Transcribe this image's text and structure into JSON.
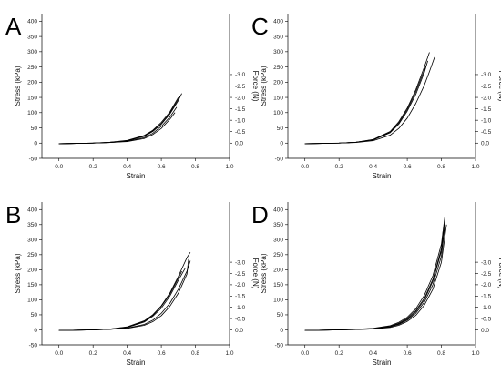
{
  "chart_data": [
    {
      "type": "line",
      "panel_label": "A",
      "xlabel": "Strain",
      "ylabel": "Stress (kPa)",
      "y2label": "Force (N)",
      "xlim": [
        -0.1,
        1.0
      ],
      "ylim": [
        -50,
        425
      ],
      "xticks": [
        "0.0",
        "0.2",
        "0.4",
        "0.6",
        "0.8",
        "1.0"
      ],
      "yticks": [
        "-50",
        "0",
        "50",
        "100",
        "150",
        "200",
        "250",
        "300",
        "350",
        "400"
      ],
      "y2ticks": [
        "0.0",
        "-0.5",
        "-1.0",
        "-1.5",
        "-2.0",
        "-2.5",
        "-3.0"
      ],
      "series": [
        {
          "x": [
            0.0,
            0.2,
            0.3,
            0.4,
            0.5,
            0.55,
            0.6,
            0.65,
            0.7,
            0.72
          ],
          "y": [
            -2,
            0,
            2,
            7,
            22,
            38,
            62,
            95,
            140,
            163
          ]
        },
        {
          "x": [
            0.0,
            0.2,
            0.3,
            0.4,
            0.5,
            0.55,
            0.6,
            0.65,
            0.7
          ],
          "y": [
            -2,
            0,
            3,
            9,
            25,
            42,
            68,
            102,
            150
          ]
        },
        {
          "x": [
            0.0,
            0.2,
            0.3,
            0.4,
            0.5,
            0.55,
            0.6,
            0.65,
            0.69
          ],
          "y": [
            -2,
            0,
            2,
            6,
            18,
            32,
            55,
            85,
            118
          ]
        },
        {
          "x": [
            0.0,
            0.2,
            0.3,
            0.4,
            0.5,
            0.55,
            0.6,
            0.65,
            0.68
          ],
          "y": [
            -2,
            0,
            2,
            5,
            15,
            28,
            48,
            78,
            100
          ]
        },
        {
          "x": [
            0.0,
            0.2,
            0.3,
            0.4,
            0.5,
            0.55,
            0.6,
            0.65,
            0.7,
            0.71
          ],
          "y": [
            -2,
            0,
            3,
            8,
            24,
            40,
            64,
            98,
            145,
            155
          ]
        }
      ]
    },
    {
      "type": "line",
      "panel_label": "C",
      "xlabel": "Strain",
      "ylabel": "Stress (kPa)",
      "y2label": "Force (N)",
      "xlim": [
        -0.1,
        1.0
      ],
      "ylim": [
        -50,
        425
      ],
      "xticks": [
        "0.0",
        "0.2",
        "0.4",
        "0.6",
        "0.8",
        "1.0"
      ],
      "yticks": [
        "-50",
        "0",
        "50",
        "100",
        "150",
        "200",
        "250",
        "300",
        "350",
        "400"
      ],
      "y2ticks": [
        "0.0",
        "-0.5",
        "-1.0",
        "-1.5",
        "-2.0",
        "-2.5",
        "-3.0"
      ],
      "series": [
        {
          "x": [
            0.0,
            0.2,
            0.3,
            0.4,
            0.5,
            0.55,
            0.6,
            0.65,
            0.7,
            0.73
          ],
          "y": [
            -2,
            0,
            3,
            12,
            38,
            70,
            115,
            175,
            250,
            298
          ]
        },
        {
          "x": [
            0.0,
            0.2,
            0.3,
            0.4,
            0.5,
            0.55,
            0.6,
            0.65,
            0.7,
            0.72
          ],
          "y": [
            -2,
            0,
            3,
            10,
            34,
            62,
            105,
            160,
            232,
            270
          ]
        },
        {
          "x": [
            0.0,
            0.2,
            0.3,
            0.4,
            0.5,
            0.55,
            0.6,
            0.65,
            0.7,
            0.73,
            0.76
          ],
          "y": [
            -2,
            0,
            2,
            8,
            26,
            48,
            82,
            130,
            190,
            235,
            282
          ]
        },
        {
          "x": [
            0.0,
            0.2,
            0.3,
            0.4,
            0.5,
            0.55,
            0.6,
            0.65,
            0.7,
            0.71
          ],
          "y": [
            -2,
            0,
            3,
            11,
            36,
            66,
            110,
            168,
            240,
            255
          ]
        }
      ]
    },
    {
      "type": "line",
      "panel_label": "B",
      "xlabel": "Strain",
      "ylabel": "Stress (kPa)",
      "y2label": "Force (N)",
      "xlim": [
        -0.1,
        1.0
      ],
      "ylim": [
        -50,
        425
      ],
      "xticks": [
        "0.0",
        "0.2",
        "0.4",
        "0.6",
        "0.8",
        "1.0"
      ],
      "yticks": [
        "-50",
        "0",
        "50",
        "100",
        "150",
        "200",
        "250",
        "300",
        "350",
        "400"
      ],
      "y2ticks": [
        "0.0",
        "-0.5",
        "-1.0",
        "-1.5",
        "-2.0",
        "-2.5",
        "-3.0"
      ],
      "series": [
        {
          "x": [
            0.0,
            0.2,
            0.3,
            0.4,
            0.5,
            0.55,
            0.6,
            0.65,
            0.7,
            0.75,
            0.77
          ],
          "y": [
            -2,
            0,
            3,
            10,
            30,
            50,
            80,
            122,
            178,
            240,
            258
          ]
        },
        {
          "x": [
            0.0,
            0.2,
            0.3,
            0.4,
            0.5,
            0.55,
            0.6,
            0.65,
            0.7,
            0.74
          ],
          "y": [
            -2,
            0,
            2,
            8,
            26,
            45,
            72,
            112,
            165,
            205
          ]
        },
        {
          "x": [
            0.0,
            0.2,
            0.3,
            0.4,
            0.5,
            0.55,
            0.6,
            0.65,
            0.7,
            0.75,
            0.77
          ],
          "y": [
            -2,
            0,
            2,
            6,
            18,
            32,
            55,
            88,
            135,
            195,
            230
          ]
        },
        {
          "x": [
            0.0,
            0.2,
            0.3,
            0.4,
            0.5,
            0.55,
            0.6,
            0.65,
            0.7,
            0.75,
            0.76
          ],
          "y": [
            -2,
            0,
            2,
            5,
            15,
            27,
            47,
            78,
            122,
            185,
            235
          ]
        },
        {
          "x": [
            0.0,
            0.2,
            0.3,
            0.4,
            0.5,
            0.55,
            0.6,
            0.65,
            0.7,
            0.72
          ],
          "y": [
            -2,
            0,
            3,
            9,
            28,
            48,
            78,
            118,
            172,
            195
          ]
        }
      ]
    },
    {
      "type": "line",
      "panel_label": "D",
      "xlabel": "Strain",
      "ylabel": "Stress (kPa)",
      "y2label": "Force (N)",
      "xlim": [
        -0.1,
        1.0
      ],
      "ylim": [
        -50,
        425
      ],
      "xticks": [
        "0.0",
        "0.2",
        "0.4",
        "0.6",
        "0.8",
        "1.0"
      ],
      "yticks": [
        "-50",
        "0",
        "50",
        "100",
        "150",
        "200",
        "250",
        "300",
        "350",
        "400"
      ],
      "y2ticks": [
        "0.0",
        "-0.5",
        "-1.0",
        "-1.5",
        "-2.0",
        "-2.5",
        "-3.0"
      ],
      "series": [
        {
          "x": [
            0.0,
            0.2,
            0.3,
            0.4,
            0.5,
            0.55,
            0.6,
            0.65,
            0.7,
            0.75,
            0.8,
            0.82
          ],
          "y": [
            -2,
            0,
            2,
            5,
            14,
            25,
            42,
            70,
            115,
            180,
            285,
            375
          ]
        },
        {
          "x": [
            0.0,
            0.2,
            0.3,
            0.4,
            0.5,
            0.55,
            0.6,
            0.65,
            0.7,
            0.75,
            0.8,
            0.81
          ],
          "y": [
            -2,
            0,
            2,
            4,
            12,
            22,
            38,
            64,
            105,
            168,
            270,
            330
          ]
        },
        {
          "x": [
            0.0,
            0.2,
            0.3,
            0.4,
            0.5,
            0.55,
            0.6,
            0.65,
            0.7,
            0.75,
            0.8,
            0.82
          ],
          "y": [
            -2,
            0,
            1,
            3,
            10,
            18,
            32,
            55,
            92,
            150,
            245,
            340
          ]
        },
        {
          "x": [
            0.0,
            0.2,
            0.3,
            0.4,
            0.5,
            0.55,
            0.6,
            0.65,
            0.7,
            0.75,
            0.8,
            0.83
          ],
          "y": [
            -2,
            0,
            1,
            3,
            8,
            15,
            28,
            48,
            82,
            135,
            225,
            350
          ]
        },
        {
          "x": [
            0.0,
            0.2,
            0.3,
            0.4,
            0.5,
            0.55,
            0.6,
            0.65,
            0.7,
            0.75,
            0.8,
            0.82
          ],
          "y": [
            -2,
            0,
            2,
            4,
            11,
            20,
            35,
            60,
            100,
            162,
            262,
            360
          ]
        }
      ]
    }
  ]
}
